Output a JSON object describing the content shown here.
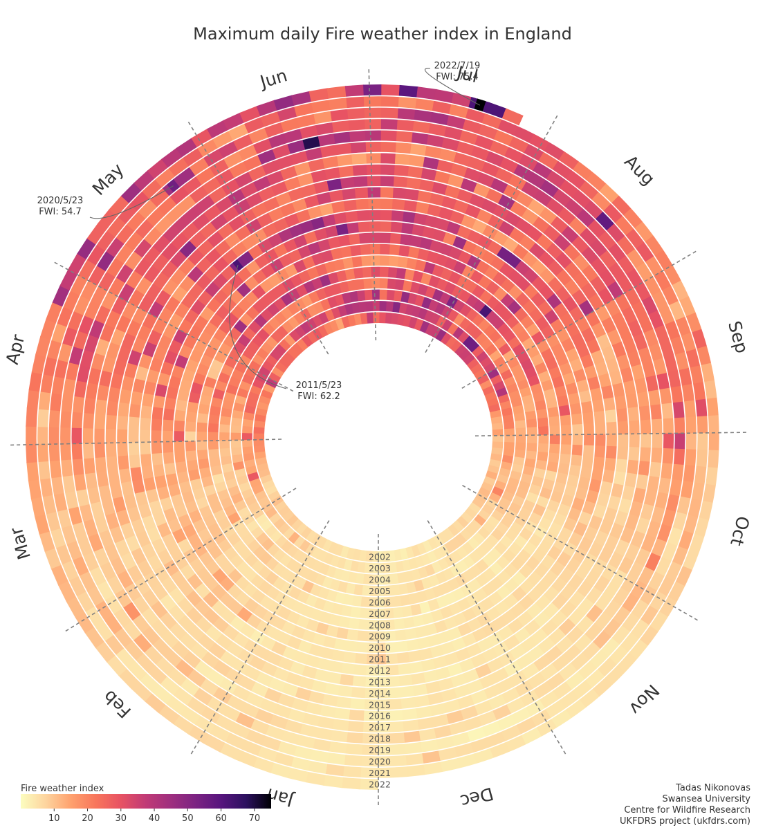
{
  "chart_data": {
    "type": "heatmap",
    "layout": "radial (one ring per year, angle = day of year, Jul at top, Jan at bottom)",
    "title": "Maximum daily Fire weather index in England",
    "months": [
      "Jan",
      "Feb",
      "Mar",
      "Apr",
      "May",
      "Jun",
      "Jul",
      "Aug",
      "Sep",
      "Oct",
      "Nov",
      "Dec"
    ],
    "years": [
      "2002",
      "2003",
      "2004",
      "2005",
      "2006",
      "2007",
      "2008",
      "2009",
      "2010",
      "2011",
      "2012",
      "2013",
      "2014",
      "2015",
      "2016",
      "2017",
      "2018",
      "2019",
      "2020",
      "2021",
      "2022"
    ],
    "approx_monthly_mean_fwi": [
      4,
      7,
      11,
      19,
      26,
      28,
      30,
      26,
      18,
      10,
      5,
      4
    ],
    "approx_year_factor": [
      1.0,
      1.2,
      0.95,
      0.95,
      1.1,
      0.85,
      0.85,
      0.9,
      1.05,
      1.1,
      0.9,
      0.95,
      0.95,
      1.0,
      1.0,
      1.05,
      1.25,
      1.0,
      1.15,
      0.9,
      1.15
    ],
    "last_day_2022": "2022/7/26",
    "highlights": [
      {
        "year": "2022",
        "date": "2022/7/19",
        "value": 75.4,
        "text_date": "2022/7/19",
        "text_value": "FWI: 75.4"
      },
      {
        "year": "2020",
        "date": "2020/5/23",
        "value": 54.7,
        "text_date": "2020/5/23",
        "text_value": "FWI: 54.7"
      },
      {
        "year": "2011",
        "date": "2011/5/23",
        "value": 62.2,
        "text_date": "2011/5/23",
        "text_value": "FWI: 62.2"
      }
    ],
    "colorbar": {
      "label": "Fire weather index",
      "colormap": "magma_r",
      "range": [
        0,
        75
      ],
      "ticks": [
        10,
        20,
        30,
        40,
        50,
        60,
        70
      ]
    },
    "colors": {
      "ring_separator": "#ffffff",
      "dashed_month_line": "#808080",
      "cmap_stops": [
        "#fcfdbf",
        "#fdd49e",
        "#fea16e",
        "#f8765c",
        "#e75263",
        "#c03a76",
        "#9e2f7f",
        "#7b2382",
        "#57157e",
        "#2c115f",
        "#000004"
      ]
    }
  },
  "credits": {
    "line1": "Tadas Nikonovas",
    "line2": "Swansea University",
    "line3": "Centre for Wildfire Research",
    "line4": "UKFDRS project (ukfdrs.com)"
  }
}
